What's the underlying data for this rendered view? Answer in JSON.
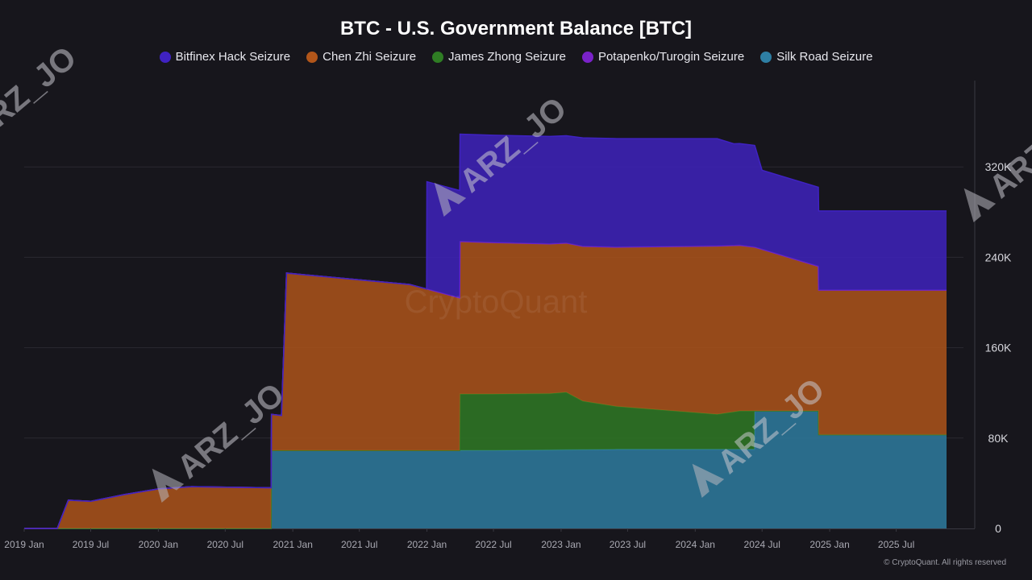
{
  "title": "BTC - U.S. Government Balance [BTC]",
  "footer": "© CryptoQuant. All rights reserved",
  "watermarks": {
    "brand": "CryptoQuant",
    "handle": "ARZ_JO"
  },
  "chart_data": {
    "type": "area",
    "stacked": true,
    "title": "BTC - U.S. Government Balance [BTC]",
    "x_ticks": [
      "2019 Jan",
      "2019 Jul",
      "2020 Jan",
      "2020 Jul",
      "2021 Jan",
      "2021 Jul",
      "2022 Jan",
      "2022 Jul",
      "2023 Jan",
      "2023 Jul",
      "2024 Jan",
      "2024 Jul",
      "2025 Jan",
      "2025 Jul"
    ],
    "y_ticks": [
      0,
      80000,
      160000,
      240000,
      320000
    ],
    "y_tick_labels": [
      "0",
      "80K",
      "160K",
      "240K",
      "320K"
    ],
    "ylim": [
      0,
      400000
    ],
    "xlim": [
      "2019-01-01",
      "2025-12-31"
    ],
    "legend_position": "top-center",
    "grid": true,
    "series": [
      {
        "name": "Silk Road Seizure",
        "color": "#2e7fa4",
        "points": [
          [
            "2019-01-01",
            0
          ],
          [
            "2020-11-03",
            0
          ],
          [
            "2020-11-04",
            69000
          ],
          [
            "2022-07-01",
            69000
          ],
          [
            "2023-06-01",
            70000
          ],
          [
            "2024-06-10",
            70000
          ],
          [
            "2024-06-11",
            104000
          ],
          [
            "2024-12-01",
            104000
          ],
          [
            "2024-12-02",
            83000
          ],
          [
            "2025-11-15",
            83000
          ]
        ]
      },
      {
        "name": "James Zhong Seizure",
        "color": "#2f7d24",
        "points": [
          [
            "2019-01-01",
            0
          ],
          [
            "2022-03-31",
            0
          ],
          [
            "2022-04-01",
            50000
          ],
          [
            "2022-12-01",
            50000
          ],
          [
            "2023-01-15",
            51000
          ],
          [
            "2023-03-01",
            43000
          ],
          [
            "2023-06-01",
            38000
          ],
          [
            "2024-03-01",
            31000
          ],
          [
            "2024-05-01",
            34000
          ],
          [
            "2024-06-10",
            34000
          ],
          [
            "2024-06-11",
            0
          ],
          [
            "2025-11-15",
            0
          ]
        ]
      },
      {
        "name": "Chen Zhi Seizure",
        "color": "#b2561a",
        "points": [
          [
            "2019-01-01",
            0
          ],
          [
            "2019-04-01",
            0
          ],
          [
            "2019-05-01",
            25000
          ],
          [
            "2019-07-01",
            24000
          ],
          [
            "2019-10-01",
            30000
          ],
          [
            "2020-01-01",
            35000
          ],
          [
            "2020-04-01",
            37000
          ],
          [
            "2020-11-03",
            36000
          ],
          [
            "2020-11-04",
            32000
          ],
          [
            "2020-12-01",
            31000
          ],
          [
            "2020-12-15",
            157000
          ],
          [
            "2021-11-15",
            147000
          ],
          [
            "2022-04-01",
            135000
          ],
          [
            "2023-01-15",
            132000
          ],
          [
            "2023-03-01",
            137000
          ],
          [
            "2023-06-01",
            141000
          ],
          [
            "2024-03-01",
            149000
          ],
          [
            "2024-06-11",
            145000
          ],
          [
            "2024-12-01",
            128000
          ],
          [
            "2025-11-15",
            128000
          ]
        ]
      },
      {
        "name": "Potapenko/Turogin Seizure",
        "color": "#7a22c9",
        "points": [
          [
            "2019-01-01",
            0
          ],
          [
            "2025-11-15",
            0
          ]
        ]
      },
      {
        "name": "Bitfinex Hack Seizure",
        "color": "#3f22c2",
        "points": [
          [
            "2019-01-01",
            0
          ],
          [
            "2021-12-31",
            0
          ],
          [
            "2022-01-01",
            95000
          ],
          [
            "2022-04-01",
            95000
          ],
          [
            "2023-01-15",
            95000
          ],
          [
            "2023-03-01",
            96000
          ],
          [
            "2023-06-01",
            96000
          ],
          [
            "2024-03-01",
            95000
          ],
          [
            "2024-04-15",
            90000
          ],
          [
            "2024-06-11",
            90000
          ],
          [
            "2024-07-01",
            70000
          ],
          [
            "2024-12-01",
            70000
          ],
          [
            "2025-11-15",
            70000
          ]
        ]
      }
    ]
  }
}
